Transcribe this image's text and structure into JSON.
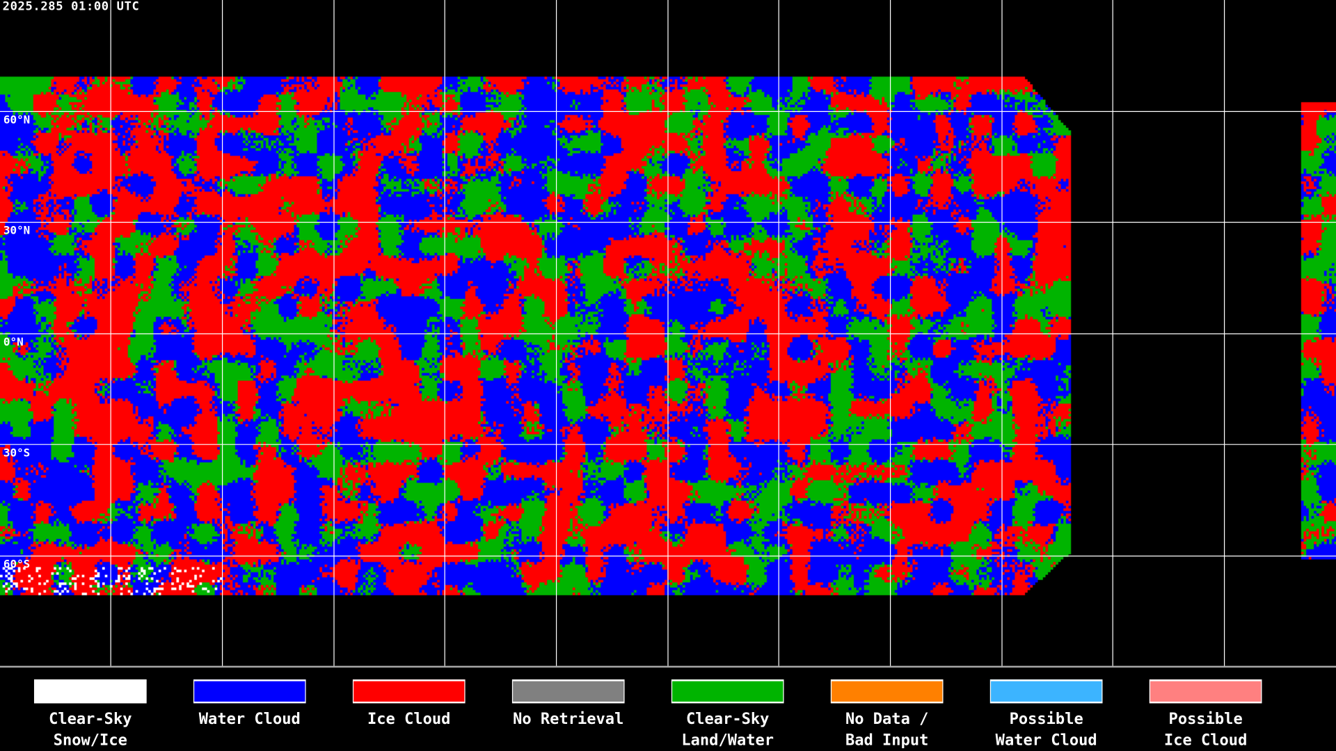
{
  "header": {
    "timestamp": "2025.285 01:00 UTC"
  },
  "latitude_labels": [
    "60°N",
    "30°N",
    "0°N",
    "30°S",
    "60°S"
  ],
  "legend": [
    {
      "line1": "Clear-Sky",
      "line2": "Snow/Ice",
      "color": "#ffffff"
    },
    {
      "line1": "Water Cloud",
      "line2": "",
      "color": "#0000ff"
    },
    {
      "line1": "Ice Cloud",
      "line2": "",
      "color": "#ff0000"
    },
    {
      "line1": "No Retrieval",
      "line2": "",
      "color": "#808080"
    },
    {
      "line1": "Clear-Sky",
      "line2": "Land/Water",
      "color": "#00b400"
    },
    {
      "line1": "No Data /",
      "line2": "Bad Input",
      "color": "#ff8000"
    },
    {
      "line1": "Possible",
      "line2": "Water Cloud",
      "color": "#3cb4ff"
    },
    {
      "line1": "Possible",
      "line2": "Ice Cloud",
      "color": "#ff8080"
    }
  ],
  "colors": {
    "background": "#000000",
    "grid": "#ffffff",
    "coast": "#ffffff"
  }
}
